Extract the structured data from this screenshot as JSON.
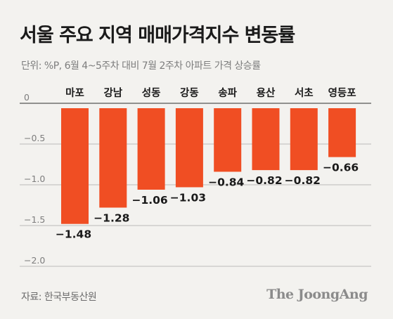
{
  "title": "서울 주요 지역 매매가격지수 변동률",
  "subtitle": "단위: %P, 6월 4~5주차 대비 7월 2주차 아파트 가격 상승률",
  "source": "자료: 한국부동산원",
  "brand": "The JoongAng",
  "colors": {
    "bar": "#f04e23",
    "axis": "#9a9a9a",
    "text": "#1a1a1a"
  },
  "chart_data": {
    "type": "bar",
    "categories": [
      "마포",
      "강남",
      "성동",
      "강동",
      "송파",
      "용산",
      "서초",
      "영등포"
    ],
    "values": [
      -1.48,
      -1.28,
      -1.06,
      -1.03,
      -0.84,
      -0.82,
      -0.82,
      -0.66
    ],
    "value_labels": [
      "−1.48",
      "−1.28",
      "−1.06",
      "−1.03",
      "−0.84",
      "−0.82",
      "−0.82",
      "−0.66"
    ],
    "y_ticks": [
      0,
      -0.5,
      -1.0,
      -1.5,
      -2.0
    ],
    "y_tick_labels": [
      "0",
      "−0.5",
      "−1.0",
      "−1.5",
      "−2.0"
    ],
    "ylim": [
      -2.0,
      0
    ],
    "grid": true
  }
}
